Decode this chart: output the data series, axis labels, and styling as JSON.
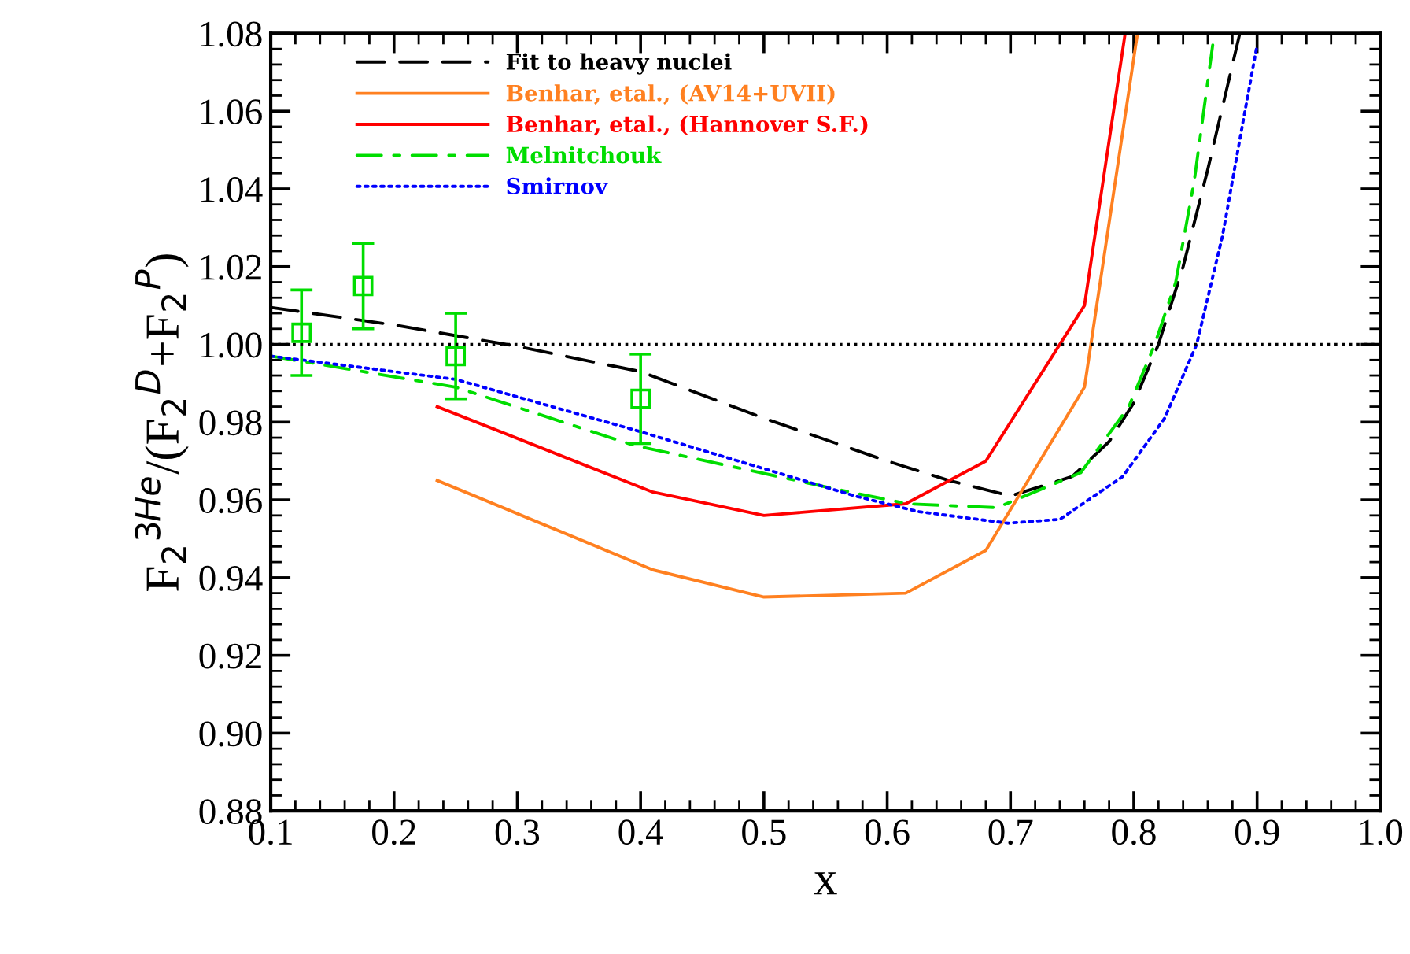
{
  "chart_data": {
    "type": "line",
    "xlabel": "x",
    "ylabel": "F$_{2}$$^{3He}$/(F$_{2}$$^{D}$+F$_{2}$$^{P}$)",
    "xlim": [
      0.1,
      1.0
    ],
    "xticks": [
      {
        "value": 0.1,
        "label": "0.1"
      },
      {
        "value": 0.2,
        "label": "0.2"
      },
      {
        "value": 0.3,
        "label": "0.3"
      },
      {
        "value": 0.4,
        "label": "0.4"
      },
      {
        "value": 0.5,
        "label": "0.5"
      },
      {
        "value": 0.6,
        "label": "0.6"
      },
      {
        "value": 0.7,
        "label": "0.7"
      },
      {
        "value": 0.8,
        "label": "0.8"
      },
      {
        "value": 0.9,
        "label": "0.9"
      },
      {
        "value": 1.0,
        "label": "1.0"
      }
    ],
    "ylim": [
      0.88,
      1.08
    ],
    "yticks": [
      {
        "value": 0.88,
        "label": "0.88"
      },
      {
        "value": 0.9,
        "label": "0.90"
      },
      {
        "value": 0.92,
        "label": "0.92"
      },
      {
        "value": 0.94,
        "label": "0.94"
      },
      {
        "value": 0.96,
        "label": "0.96"
      },
      {
        "value": 0.98,
        "label": "0.98"
      },
      {
        "value": 1.0,
        "label": "1.00"
      },
      {
        "value": 1.02,
        "label": "1.02"
      },
      {
        "value": 1.04,
        "label": "1.04"
      },
      {
        "value": 1.06,
        "label": "1.06"
      },
      {
        "value": 1.08,
        "label": "1.08"
      }
    ],
    "grid": false,
    "legend": "top left",
    "marker": "none",
    "ref_lines": [
      {
        "axis": "y",
        "value": 1.0,
        "color": "#000000",
        "line_style": "dotted"
      }
    ],
    "series": [
      {
        "name": "Fit to heavy nuclei",
        "color": "#000000",
        "line_style": "dashed",
        "x": [
          0.1,
          0.2,
          0.3,
          0.4,
          0.5,
          0.6,
          0.65,
          0.7,
          0.75,
          0.78,
          0.8,
          0.82,
          0.84,
          0.86,
          0.886
        ],
        "values": [
          1.0095,
          1.005,
          0.9995,
          0.993,
          0.981,
          0.97,
          0.965,
          0.961,
          0.966,
          0.975,
          0.985,
          1.0,
          1.02,
          1.045,
          1.08
        ]
      },
      {
        "name": "Benhar, etal., (AV14+UVII)",
        "color": "#ff8020",
        "line_style": "solid",
        "x": [
          0.235,
          0.41,
          0.5,
          0.615,
          0.68,
          0.76,
          0.803
        ],
        "values": [
          0.965,
          0.942,
          0.935,
          0.936,
          0.947,
          0.989,
          1.08
        ]
      },
      {
        "name": "Benhar, etal., (Hannover S.F.)",
        "color": "#ff0000",
        "line_style": "solid",
        "x": [
          0.235,
          0.41,
          0.5,
          0.615,
          0.68,
          0.76,
          0.793
        ],
        "values": [
          0.984,
          0.962,
          0.956,
          0.959,
          0.97,
          1.01,
          1.08
        ]
      },
      {
        "name": "Melnitchouk",
        "color": "#00dd00",
        "line_style": "dashdot",
        "x": [
          0.1,
          0.25,
          0.395,
          0.57,
          0.617,
          0.689,
          0.757,
          0.796,
          0.817,
          0.834,
          0.849,
          0.864
        ],
        "values": [
          0.997,
          0.989,
          0.974,
          0.962,
          0.959,
          0.958,
          0.967,
          0.984,
          1.0,
          1.016,
          1.042,
          1.077
        ]
      },
      {
        "name": "Smirnov",
        "color": "#0000ff",
        "line_style": "dotted",
        "x": [
          0.1,
          0.25,
          0.395,
          0.574,
          0.625,
          0.698,
          0.74,
          0.791,
          0.825,
          0.851,
          0.872,
          0.889,
          0.9
        ],
        "values": [
          0.997,
          0.991,
          0.978,
          0.961,
          0.957,
          0.954,
          0.955,
          0.966,
          0.981,
          1.0,
          1.028,
          1.058,
          1.077
        ]
      },
      {
        "type": "scatter",
        "color": "#00dd00",
        "marker": "square",
        "x": [
          0.125,
          0.175,
          0.25,
          0.4
        ],
        "values": [
          1.003,
          1.015,
          0.997,
          0.986
        ],
        "errors": [
          0.011,
          0.011,
          0.011,
          0.0115
        ]
      }
    ]
  }
}
